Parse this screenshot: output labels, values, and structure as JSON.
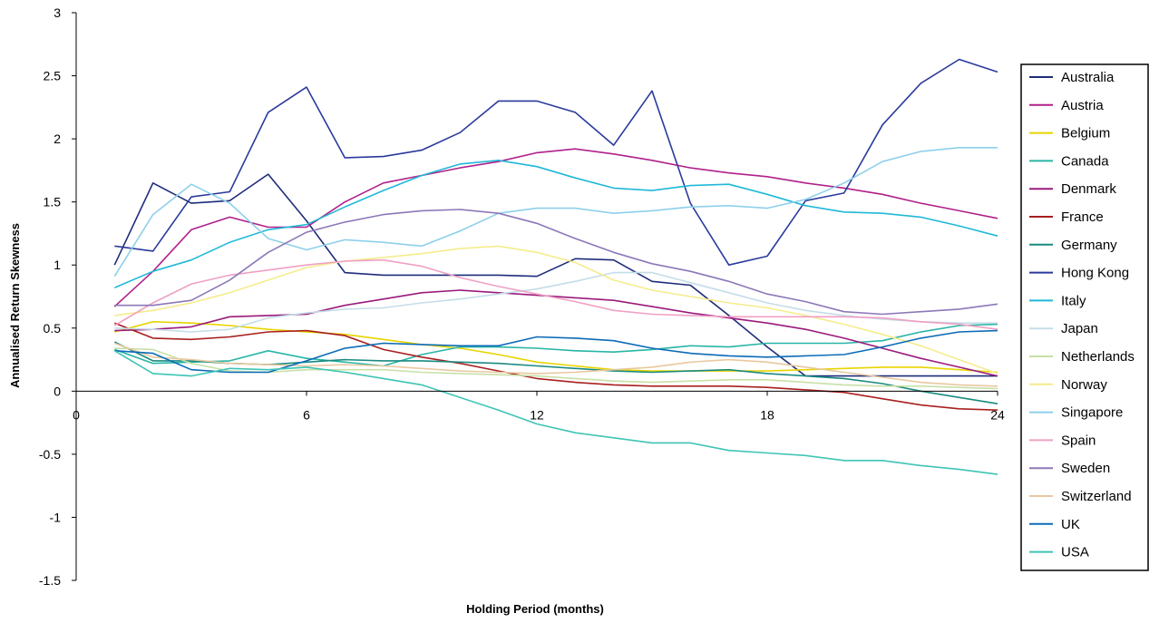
{
  "chart_data": {
    "type": "line",
    "title": "",
    "xlabel": "Holding Period (months)",
    "ylabel": "Annualised Return Skewness",
    "xlim": [
      0,
      24
    ],
    "ylim": [
      -1.5,
      3
    ],
    "xticks": [
      "0",
      "6",
      "12",
      "18",
      "24"
    ],
    "xtick_values": [
      0,
      6,
      12,
      18,
      24
    ],
    "yticks": [
      "3",
      "2.5",
      "2",
      "1.5",
      "1",
      "0.5",
      "0",
      "-0.5",
      "-1",
      "-1.5"
    ],
    "ytick_values": [
      3,
      2.5,
      2,
      1.5,
      1,
      0.5,
      0,
      -0.5,
      -1,
      -1.5
    ],
    "grid": false,
    "legend_position": "right",
    "x": [
      1,
      2,
      3,
      4,
      5,
      6,
      7,
      8,
      9,
      10,
      11,
      12,
      13,
      14,
      15,
      16,
      17,
      18,
      19,
      20,
      21,
      22,
      23,
      24
    ],
    "series": [
      {
        "name": "Australia",
        "color": "#1f2c7a",
        "values": [
          1.0,
          1.65,
          1.49,
          1.51,
          1.72,
          1.35,
          0.94,
          0.92,
          0.92,
          0.92,
          0.92,
          0.91,
          1.05,
          1.04,
          0.87,
          0.84,
          0.6,
          0.35,
          0.12,
          0.12,
          0.12,
          0.12,
          0.12,
          0.12
        ]
      },
      {
        "name": "Austria",
        "color": "#b0208a",
        "values": [
          0.67,
          0.95,
          1.28,
          1.38,
          1.3,
          1.3,
          1.5,
          1.65,
          1.71,
          1.77,
          1.82,
          1.89,
          1.92,
          1.88,
          1.83,
          1.77,
          1.73,
          1.7,
          1.65,
          1.61,
          1.56,
          1.49,
          1.43,
          1.37
        ]
      },
      {
        "name": "Belgium",
        "color": "#e8d400",
        "values": [
          0.47,
          0.55,
          0.54,
          0.52,
          0.49,
          0.47,
          0.45,
          0.41,
          0.37,
          0.34,
          0.29,
          0.23,
          0.2,
          0.17,
          0.16,
          0.16,
          0.16,
          0.16,
          0.17,
          0.18,
          0.19,
          0.19,
          0.17,
          0.15
        ]
      },
      {
        "name": "Canada",
        "color": "#28b5a5",
        "values": [
          0.33,
          0.22,
          0.23,
          0.24,
          0.32,
          0.26,
          0.23,
          0.2,
          0.29,
          0.35,
          0.35,
          0.34,
          0.32,
          0.31,
          0.33,
          0.36,
          0.35,
          0.38,
          0.38,
          0.38,
          0.4,
          0.47,
          0.52,
          0.53
        ]
      },
      {
        "name": "Denmark",
        "color": "#9a1a7c",
        "values": [
          0.48,
          0.49,
          0.51,
          0.59,
          0.6,
          0.61,
          0.68,
          0.73,
          0.78,
          0.8,
          0.78,
          0.76,
          0.74,
          0.72,
          0.67,
          0.62,
          0.58,
          0.54,
          0.49,
          0.42,
          0.34,
          0.26,
          0.19,
          0.12
        ]
      },
      {
        "name": "France",
        "color": "#a8201f",
        "values": [
          0.54,
          0.42,
          0.41,
          0.43,
          0.47,
          0.48,
          0.44,
          0.33,
          0.27,
          0.22,
          0.16,
          0.1,
          0.07,
          0.05,
          0.04,
          0.04,
          0.04,
          0.03,
          0.01,
          -0.01,
          -0.06,
          -0.11,
          -0.14,
          -0.15
        ]
      },
      {
        "name": "Germany",
        "color": "#1a8a80",
        "values": [
          0.39,
          0.24,
          0.24,
          0.22,
          0.21,
          0.23,
          0.25,
          0.24,
          0.24,
          0.23,
          0.22,
          0.2,
          0.18,
          0.16,
          0.15,
          0.16,
          0.17,
          0.14,
          0.12,
          0.1,
          0.06,
          0.0,
          -0.05,
          -0.1
        ]
      },
      {
        "name": "Hong Kong",
        "color": "#2a3a9c",
        "values": [
          1.15,
          1.11,
          1.54,
          1.58,
          2.21,
          2.41,
          1.85,
          1.86,
          1.91,
          2.05,
          2.3,
          2.3,
          2.21,
          1.95,
          2.38,
          1.49,
          1.0,
          1.07,
          1.51,
          1.57,
          2.11,
          2.44,
          2.63,
          2.53
        ]
      },
      {
        "name": "Italy",
        "color": "#20b8d8",
        "values": [
          0.82,
          0.95,
          1.04,
          1.18,
          1.28,
          1.32,
          1.46,
          1.59,
          1.71,
          1.8,
          1.83,
          1.78,
          1.69,
          1.61,
          1.59,
          1.63,
          1.64,
          1.56,
          1.47,
          1.42,
          1.41,
          1.38,
          1.31,
          1.23
        ]
      },
      {
        "name": "Japan",
        "color": "#c4dde8",
        "values": [
          0.5,
          0.49,
          0.47,
          0.49,
          0.58,
          0.62,
          0.65,
          0.66,
          0.7,
          0.73,
          0.77,
          0.81,
          0.87,
          0.94,
          0.94,
          0.86,
          0.78,
          0.7,
          0.64,
          0.6,
          0.57,
          0.55,
          0.54,
          0.54
        ]
      },
      {
        "name": "Netherlands",
        "color": "#c8e0a8",
        "values": [
          0.34,
          0.33,
          0.22,
          0.16,
          0.15,
          0.17,
          0.17,
          0.17,
          0.15,
          0.14,
          0.13,
          0.12,
          0.1,
          0.08,
          0.07,
          0.08,
          0.09,
          0.09,
          0.07,
          0.05,
          0.04,
          0.04,
          0.03,
          0.02
        ]
      },
      {
        "name": "Norway",
        "color": "#f5ec8c",
        "values": [
          0.6,
          0.64,
          0.7,
          0.78,
          0.88,
          0.98,
          1.03,
          1.06,
          1.09,
          1.13,
          1.15,
          1.1,
          1.02,
          0.88,
          0.8,
          0.75,
          0.7,
          0.66,
          0.6,
          0.53,
          0.45,
          0.36,
          0.25,
          0.14
        ]
      },
      {
        "name": "Singapore",
        "color": "#8ed0ea",
        "values": [
          0.91,
          1.4,
          1.64,
          1.49,
          1.21,
          1.12,
          1.2,
          1.18,
          1.15,
          1.27,
          1.41,
          1.45,
          1.45,
          1.41,
          1.43,
          1.46,
          1.47,
          1.45,
          1.52,
          1.65,
          1.82,
          1.9,
          1.93,
          1.93
        ]
      },
      {
        "name": "Spain",
        "color": "#f0a0c4",
        "values": [
          0.52,
          0.7,
          0.85,
          0.92,
          0.96,
          1.0,
          1.03,
          1.04,
          0.99,
          0.9,
          0.83,
          0.77,
          0.71,
          0.64,
          0.61,
          0.6,
          0.59,
          0.59,
          0.59,
          0.59,
          0.58,
          0.55,
          0.53,
          0.49
        ]
      },
      {
        "name": "Sweden",
        "color": "#8c78b8",
        "values": [
          0.68,
          0.68,
          0.72,
          0.88,
          1.1,
          1.26,
          1.34,
          1.4,
          1.43,
          1.44,
          1.41,
          1.33,
          1.21,
          1.1,
          1.01,
          0.95,
          0.87,
          0.77,
          0.71,
          0.63,
          0.61,
          0.63,
          0.65,
          0.69
        ]
      },
      {
        "name": "Switzerland",
        "color": "#e8c8a0",
        "values": [
          0.38,
          0.27,
          0.25,
          0.22,
          0.21,
          0.2,
          0.21,
          0.2,
          0.18,
          0.16,
          0.15,
          0.14,
          0.15,
          0.17,
          0.19,
          0.23,
          0.25,
          0.23,
          0.19,
          0.15,
          0.11,
          0.07,
          0.05,
          0.04
        ]
      },
      {
        "name": "UK",
        "color": "#0b6bb8",
        "values": [
          0.32,
          0.3,
          0.17,
          0.15,
          0.15,
          0.24,
          0.34,
          0.38,
          0.37,
          0.36,
          0.36,
          0.43,
          0.42,
          0.4,
          0.34,
          0.3,
          0.28,
          0.27,
          0.28,
          0.29,
          0.35,
          0.42,
          0.47,
          0.48
        ]
      },
      {
        "name": "USA",
        "color": "#3ec4b4",
        "values": [
          0.32,
          0.14,
          0.12,
          0.18,
          0.17,
          0.19,
          0.15,
          0.1,
          0.05,
          -0.05,
          -0.15,
          -0.26,
          -0.33,
          -0.37,
          -0.41,
          -0.41,
          -0.47,
          -0.49,
          -0.51,
          -0.55,
          -0.55,
          -0.59,
          -0.62,
          -0.66
        ]
      }
    ]
  }
}
